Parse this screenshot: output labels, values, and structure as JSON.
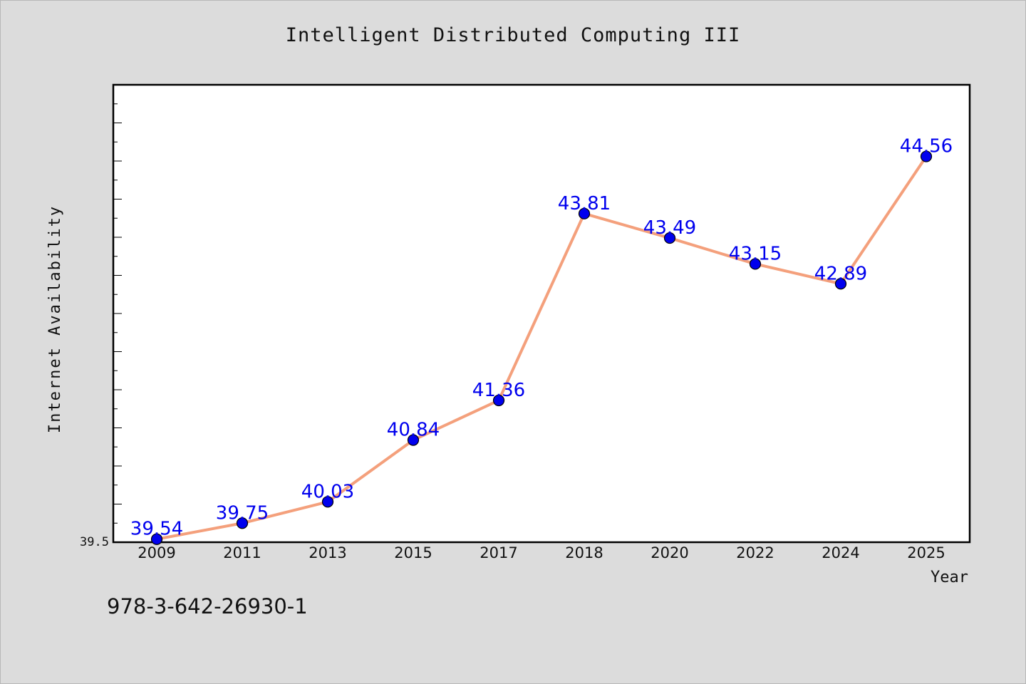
{
  "chart_data": {
    "type": "line",
    "title": "Intelligent Distributed Computing III",
    "xlabel": "Year",
    "ylabel": "Internet Availability",
    "categories": [
      "2009",
      "2011",
      "2013",
      "2015",
      "2017",
      "2018",
      "2020",
      "2022",
      "2024",
      "2025"
    ],
    "values": [
      39.54,
      39.75,
      40.03,
      40.84,
      41.36,
      43.81,
      43.49,
      43.15,
      42.89,
      44.56
    ],
    "value_labels": [
      "39.54",
      "39.75",
      "40.03",
      "40.84",
      "41.36",
      "43.81",
      "43.49",
      "43.15",
      "42.89",
      "44.56"
    ],
    "y_tick_label": "39.5",
    "ylim": [
      39.5,
      45.5
    ],
    "grid": false,
    "line_color": "#f4a07c",
    "marker_color": "#0000ee",
    "label_color": "#0000ee"
  },
  "footer": {
    "isbn": "978-3-642-26930-1"
  }
}
